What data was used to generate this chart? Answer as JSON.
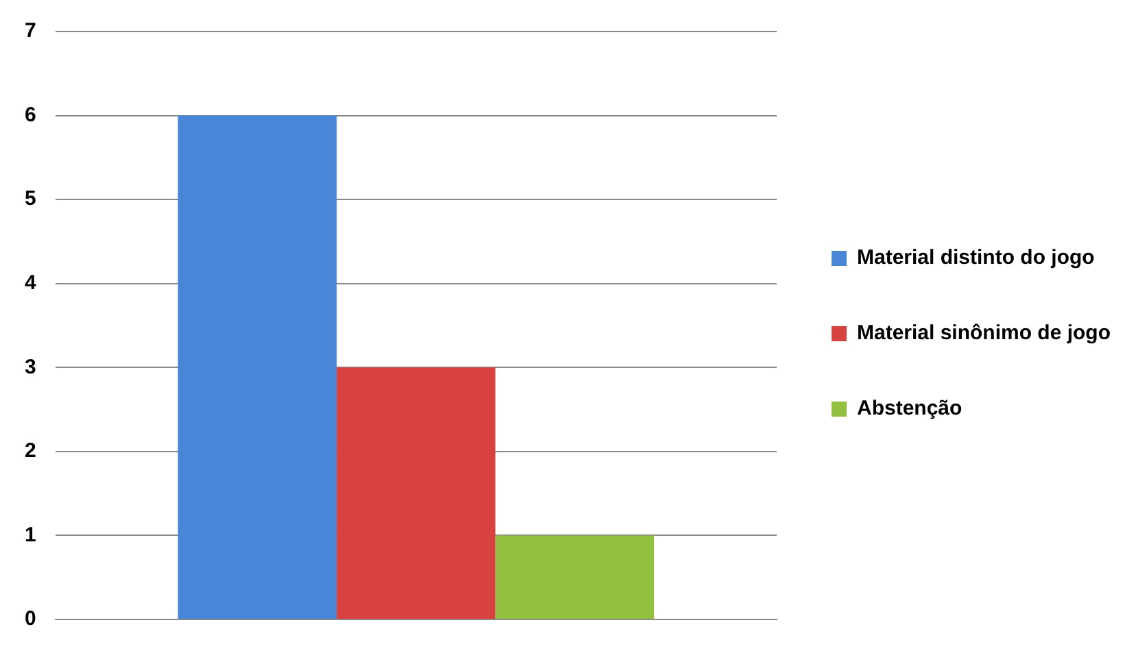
{
  "chart_data": {
    "type": "bar",
    "categories": [
      null
    ],
    "series": [
      {
        "name": "Material distinto do jogo",
        "color": "#4a86d8",
        "values": [
          6
        ]
      },
      {
        "name": "Material sinônimo de jogo",
        "color": "#d9433f",
        "values": [
          3
        ]
      },
      {
        "name": "Abstenção",
        "color": "#93c040",
        "values": [
          1
        ]
      }
    ],
    "ylim": [
      0,
      7
    ],
    "yticks": [
      0,
      1,
      2,
      3,
      4,
      5,
      6,
      7
    ],
    "grid": "y",
    "legend": "right"
  }
}
